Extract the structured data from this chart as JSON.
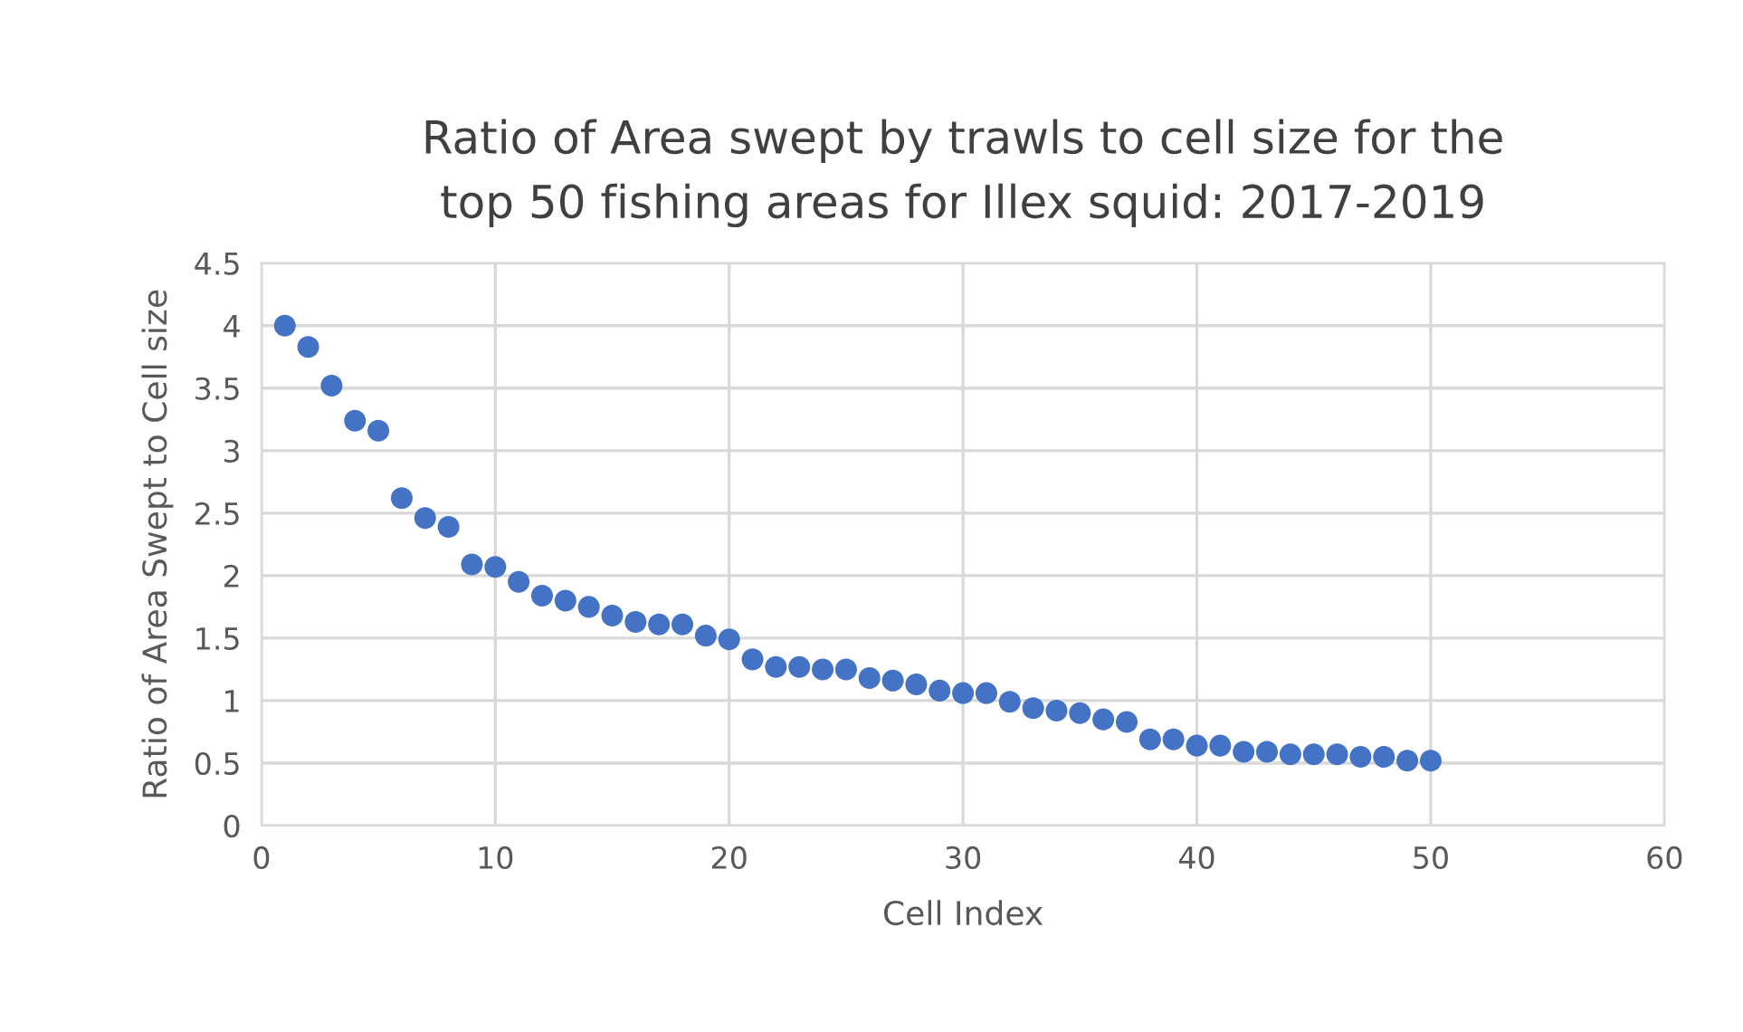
{
  "chart_data": {
    "type": "scatter",
    "title": "Ratio of Area swept by trawls to cell size for the\ntop 50 fishing areas for Illex squid: 2017-2019",
    "xlabel": "Cell Index",
    "ylabel": "Ratio of Area Swept to Cell size",
    "x": [
      1,
      2,
      3,
      4,
      5,
      6,
      7,
      8,
      9,
      10,
      11,
      12,
      13,
      14,
      15,
      16,
      17,
      18,
      19,
      20,
      21,
      22,
      23,
      24,
      25,
      26,
      27,
      28,
      29,
      30,
      31,
      32,
      33,
      34,
      35,
      36,
      37,
      38,
      39,
      40,
      41,
      42,
      43,
      44,
      45,
      46,
      47,
      48,
      49,
      50
    ],
    "series": [
      {
        "color": "#4472c4",
        "values": [
          4.0,
          3.83,
          3.52,
          3.24,
          3.16,
          2.62,
          2.46,
          2.39,
          2.09,
          2.07,
          1.95,
          1.84,
          1.8,
          1.75,
          1.68,
          1.63,
          1.61,
          1.61,
          1.52,
          1.49,
          1.33,
          1.27,
          1.27,
          1.25,
          1.25,
          1.18,
          1.16,
          1.13,
          1.08,
          1.06,
          1.06,
          0.99,
          0.94,
          0.92,
          0.9,
          0.85,
          0.83,
          0.69,
          0.69,
          0.64,
          0.64,
          0.59,
          0.59,
          0.57,
          0.57,
          0.57,
          0.55,
          0.55,
          0.52,
          0.52
        ]
      }
    ],
    "xlim": [
      0,
      60
    ],
    "xticks": [
      0,
      10,
      20,
      30,
      40,
      50,
      60
    ],
    "ylim": [
      0,
      4.5
    ],
    "yticks": [
      0,
      0.5,
      1,
      1.5,
      2,
      2.5,
      3,
      3.5,
      4,
      4.5
    ],
    "grid": true,
    "marker": "circle",
    "legend": false
  }
}
